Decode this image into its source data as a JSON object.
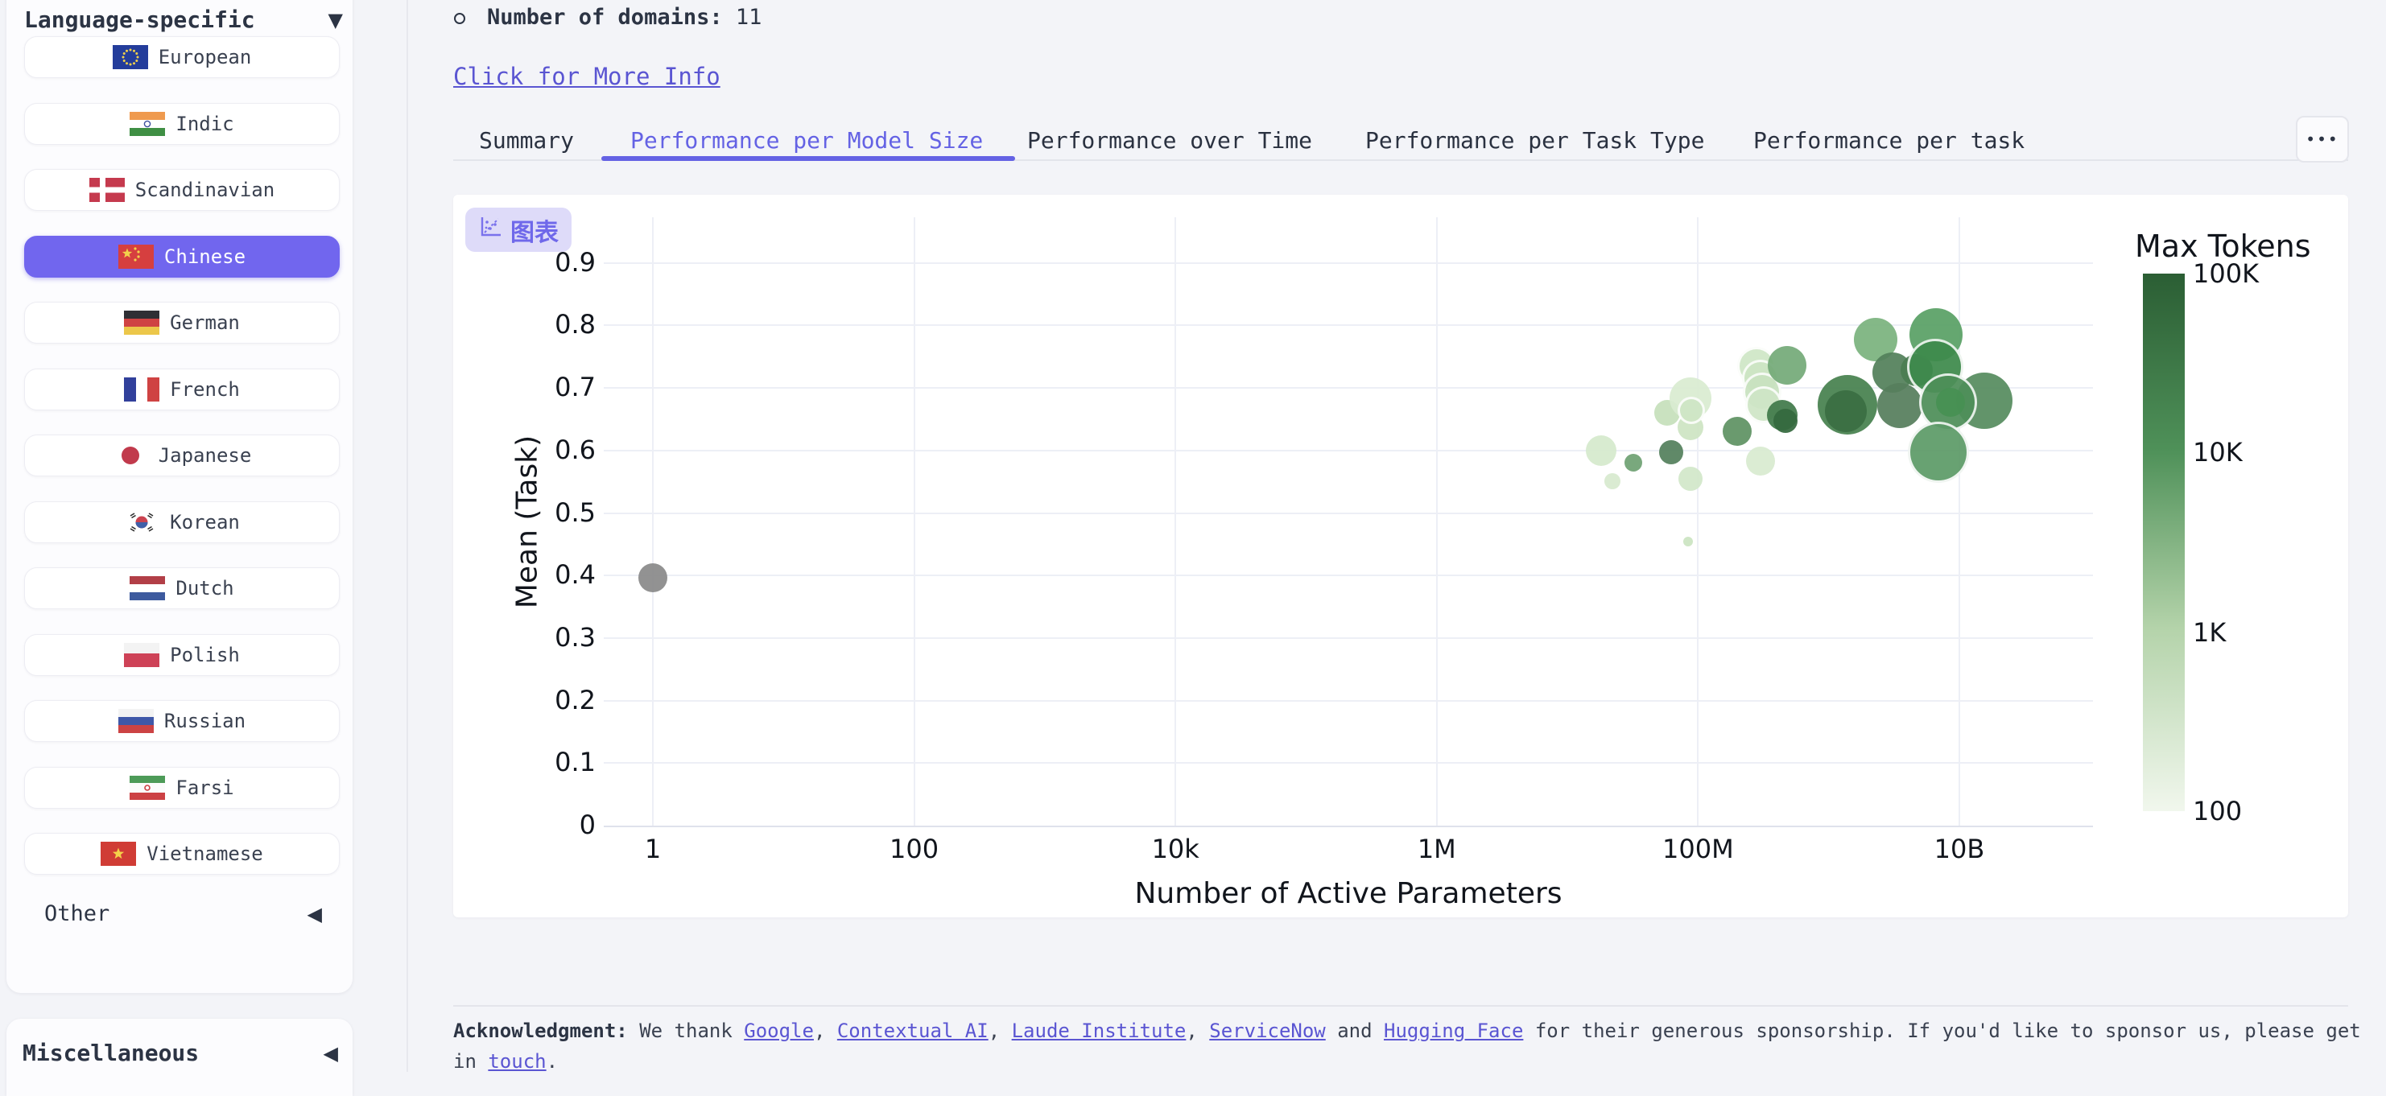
{
  "icons": {
    "caret_down": "▼",
    "caret_left": "◀"
  },
  "colors": {
    "accent": "#6462e4",
    "link": "#5a55d2",
    "selected_item_bg": "#7166ee",
    "chip_bg": "#dedbf9",
    "chip_fg": "#6f68ea",
    "gray_point": "#8a8a8a"
  },
  "sidebar": {
    "section_header": {
      "label": "Language-specific"
    },
    "items": [
      {
        "label": "European",
        "flag": "eu",
        "selected": false
      },
      {
        "label": "Indic",
        "flag": "in",
        "selected": false
      },
      {
        "label": "Scandinavian",
        "flag": "dk",
        "selected": false
      },
      {
        "label": "Chinese",
        "flag": "cn",
        "selected": true
      },
      {
        "label": "German",
        "flag": "de",
        "selected": false
      },
      {
        "label": "French",
        "flag": "fr",
        "selected": false
      },
      {
        "label": "Japanese",
        "flag": "jp",
        "selected": false
      },
      {
        "label": "Korean",
        "flag": "kr",
        "selected": false
      },
      {
        "label": "Dutch",
        "flag": "nl",
        "selected": false
      },
      {
        "label": "Polish",
        "flag": "pl",
        "selected": false
      },
      {
        "label": "Russian",
        "flag": "ru",
        "selected": false
      },
      {
        "label": "Farsi",
        "flag": "ir",
        "selected": false
      },
      {
        "label": "Vietnamese",
        "flag": "vn",
        "selected": false
      }
    ],
    "other_section": {
      "label": "Other"
    },
    "misc_section": {
      "label": "Miscellaneous"
    }
  },
  "main": {
    "domains_line": {
      "label": "Number of domains:",
      "value": "11"
    },
    "info_link": "Click for More Info",
    "tabs": [
      {
        "label": "Summary",
        "active": false
      },
      {
        "label": "Performance per Model Size",
        "active": true
      },
      {
        "label": "Performance over Time",
        "active": false
      },
      {
        "label": "Performance per Task Type",
        "active": false
      },
      {
        "label": "Performance per task",
        "active": false
      }
    ],
    "more_button": "•••",
    "chart_button": "图表",
    "acknowledgment": [
      {
        "t": "Acknowledgment:",
        "bold": true
      },
      {
        "t": " We thank "
      },
      {
        "t": "Google",
        "link": true
      },
      {
        "t": ", "
      },
      {
        "t": "Contextual AI",
        "link": true
      },
      {
        "t": ", "
      },
      {
        "t": "Laude Institute",
        "link": true
      },
      {
        "t": ", "
      },
      {
        "t": "ServiceNow",
        "link": true
      },
      {
        "t": " and "
      },
      {
        "t": "Hugging Face",
        "link": true
      },
      {
        "t": " for their generous sponsorship. If you'd like to sponsor us, please get in "
      },
      {
        "t": "touch",
        "link": true
      },
      {
        "t": "."
      }
    ]
  },
  "chart_data": {
    "type": "scatter",
    "subtype": "bubble",
    "xlabel": "Number of Active Parameters",
    "ylabel": "Mean (Task)",
    "x_scale": "log",
    "grid": true,
    "x_ticks": [
      {
        "label": "1",
        "value": 1
      },
      {
        "label": "100",
        "value": 100
      },
      {
        "label": "10k",
        "value": 10000
      },
      {
        "label": "1M",
        "value": 1000000
      },
      {
        "label": "100M",
        "value": 100000000
      },
      {
        "label": "10B",
        "value": 10000000000
      }
    ],
    "y_ticks": [
      {
        "label": "0",
        "value": 0
      },
      {
        "label": "0.1",
        "value": 0.1
      },
      {
        "label": "0.2",
        "value": 0.2
      },
      {
        "label": "0.3",
        "value": 0.3
      },
      {
        "label": "0.4",
        "value": 0.4
      },
      {
        "label": "0.5",
        "value": 0.5
      },
      {
        "label": "0.6",
        "value": 0.6
      },
      {
        "label": "0.7",
        "value": 0.7
      },
      {
        "label": "0.8",
        "value": 0.8
      },
      {
        "label": "0.9",
        "value": 0.9
      }
    ],
    "legend": {
      "title": "Max Tokens",
      "position": "right",
      "gradient": [
        "#2b5e34",
        "#4f9159",
        "#b4d3aa",
        "#f1f7ed"
      ],
      "labels": [
        {
          "text": "100K",
          "pos": 0
        },
        {
          "text": "10K",
          "pos": 0.333
        },
        {
          "text": "1K",
          "pos": 0.667
        },
        {
          "text": "100",
          "pos": 1
        }
      ]
    },
    "points": [
      {
        "x": 18000000.0,
        "y": 0.6,
        "r": 19,
        "color": "#d5e9cc",
        "stroke": false
      },
      {
        "x": 22000000.0,
        "y": 0.551,
        "r": 10,
        "color": "#d7eacf",
        "stroke": false
      },
      {
        "x": 58000000.0,
        "y": 0.66,
        "r": 16,
        "color": "#c6e0bb",
        "stroke": false
      },
      {
        "x": 87000000.0,
        "y": 0.637,
        "r": 16,
        "color": "#cde4c3",
        "stroke": false
      },
      {
        "x": 87000000.0,
        "y": 0.555,
        "r": 15,
        "color": "#d2e7c9",
        "stroke": false
      },
      {
        "x": 300000000.0,
        "y": 0.583,
        "r": 18,
        "color": "#d8ebd0",
        "stroke": false
      },
      {
        "x": 84000000.0,
        "y": 0.454,
        "r": 6,
        "color": "#cbe4c2",
        "stroke": false
      },
      {
        "x": 87000000.0,
        "y": 0.683,
        "r": 26,
        "color": "#d9ecd1",
        "stroke": false
      },
      {
        "x": 89000000.0,
        "y": 0.664,
        "r": 17,
        "color": "#cfe6c5",
        "stroke": true
      },
      {
        "x": 32000000.0,
        "y": 0.58,
        "r": 11,
        "color": "#6fa173",
        "stroke": false
      },
      {
        "x": 62000000.0,
        "y": 0.597,
        "r": 15,
        "color": "#54805c",
        "stroke": false
      },
      {
        "x": 200000000.0,
        "y": 0.631,
        "r": 18,
        "color": "#5f9263",
        "stroke": false
      },
      {
        "x": 280000000.0,
        "y": 0.735,
        "r": 24,
        "color": "#cfe7c6",
        "stroke": true
      },
      {
        "x": 300000000.0,
        "y": 0.716,
        "r": 23,
        "color": "#cde5c4",
        "stroke": true
      },
      {
        "x": 310000000.0,
        "y": 0.694,
        "r": 24,
        "color": "#c9e2c0",
        "stroke": true
      },
      {
        "x": 320000000.0,
        "y": 0.673,
        "r": 23,
        "color": "#cfe6c7",
        "stroke": true
      },
      {
        "x": 480000000.0,
        "y": 0.736,
        "r": 24,
        "color": "#74aa78",
        "stroke": false
      },
      {
        "x": 2300000000.0,
        "y": 0.777,
        "r": 27,
        "color": "#7bb37e",
        "stroke": false
      },
      {
        "x": 440000000.0,
        "y": 0.657,
        "r": 19,
        "color": "#417a4a",
        "stroke": false
      },
      {
        "x": 470000000.0,
        "y": 0.647,
        "r": 15,
        "color": "#35693e",
        "stroke": false
      },
      {
        "x": 3100000000.0,
        "y": 0.725,
        "r": 25,
        "color": "#53805a",
        "stroke": false
      },
      {
        "x": 3500000000.0,
        "y": 0.672,
        "r": 28,
        "color": "#567e5c",
        "stroke": false
      },
      {
        "x": 1400000000.0,
        "y": 0.673,
        "r": 37,
        "color": "#47814f",
        "stroke": false
      },
      {
        "x": 1350000000.0,
        "y": 0.663,
        "r": 26,
        "color": "#3a6e43",
        "stroke": false
      },
      {
        "x": 4700000000.0,
        "y": 0.728,
        "r": 20,
        "color": "#4a7d52",
        "stroke": false
      },
      {
        "x": 6600000000.0,
        "y": 0.785,
        "r": 33,
        "color": "#59a065",
        "stroke": false
      },
      {
        "x": 15500000000.0,
        "y": 0.68,
        "r": 35,
        "color": "#568c5f",
        "stroke": false
      },
      {
        "x": 6500000000.0,
        "y": 0.734,
        "r": 35,
        "color": "#3e8a4c",
        "stroke": true
      },
      {
        "x": 8200000000.0,
        "y": 0.677,
        "r": 36,
        "color": "#4e8f59",
        "stroke": true
      },
      {
        "x": 8500000000.0,
        "y": 0.677,
        "r": 18,
        "color": "#479053",
        "stroke": false
      },
      {
        "x": 6900000000.0,
        "y": 0.597,
        "r": 38,
        "color": "#5d9b68",
        "stroke": true
      },
      {
        "x": 1,
        "y": 0.396,
        "r": 18,
        "color": "#8a8a8a",
        "stroke": false
      }
    ]
  }
}
